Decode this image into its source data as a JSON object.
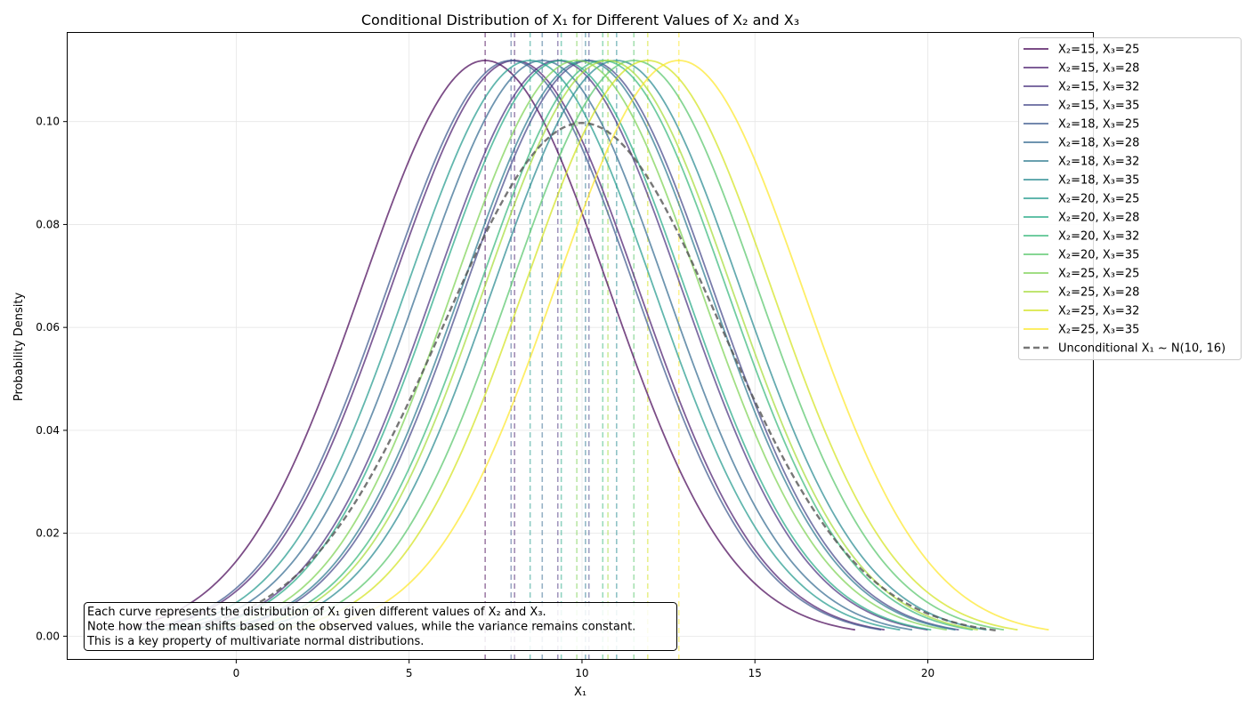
{
  "chart_data": {
    "type": "line",
    "title": "Conditional Distribution of X₁ for Different Values of X₂ and X₃",
    "xlabel": "X₁",
    "ylabel": "Probability Density",
    "xlim": [
      -4.9,
      24.8
    ],
    "ylim": [
      -0.0046,
      0.1174
    ],
    "xticks": [
      0,
      5,
      10,
      15,
      20
    ],
    "yticks": [
      0.0,
      0.02,
      0.04,
      0.06,
      0.08,
      0.1
    ],
    "ytick_labels": [
      "0.00",
      "0.02",
      "0.04",
      "0.06",
      "0.08",
      "0.10"
    ],
    "grid": true,
    "legend_position": "upper-right-outside",
    "curve_range_sd": 3,
    "conditional_sd": 3.566,
    "series": [
      {
        "name": "X₂=15, X₃=25",
        "mean": 7.2,
        "sd": 3.566,
        "color": "#440154"
      },
      {
        "name": "X₂=15, X₃=28",
        "mean": 8.05,
        "sd": 3.566,
        "color": "#481a6c"
      },
      {
        "name": "X₂=15, X₃=32",
        "mean": 9.3,
        "sd": 3.566,
        "color": "#472f7d"
      },
      {
        "name": "X₂=15, X₃=35",
        "mean": 10.2,
        "sd": 3.566,
        "color": "#414487"
      },
      {
        "name": "X₂=18, X₃=25",
        "mean": 7.95,
        "sd": 3.566,
        "color": "#39568c"
      },
      {
        "name": "X₂=18, X₃=28",
        "mean": 8.85,
        "sd": 3.566,
        "color": "#31688e"
      },
      {
        "name": "X₂=18, X₃=32",
        "mean": 10.1,
        "sd": 3.566,
        "color": "#2a788e"
      },
      {
        "name": "X₂=18, X₃=35",
        "mean": 11.0,
        "sd": 3.566,
        "color": "#23888e"
      },
      {
        "name": "X₂=20, X₃=25",
        "mean": 8.5,
        "sd": 3.566,
        "color": "#1f988b"
      },
      {
        "name": "X₂=20, X₃=28",
        "mean": 9.4,
        "sd": 3.566,
        "color": "#22a884"
      },
      {
        "name": "X₂=20, X₃=32",
        "mean": 10.6,
        "sd": 3.566,
        "color": "#35b779"
      },
      {
        "name": "X₂=20, X₃=35",
        "mean": 11.5,
        "sd": 3.566,
        "color": "#54c568"
      },
      {
        "name": "X₂=25, X₃=25",
        "mean": 9.85,
        "sd": 3.566,
        "color": "#7ad151"
      },
      {
        "name": "X₂=25, X₃=28",
        "mean": 10.75,
        "sd": 3.566,
        "color": "#a5db36"
      },
      {
        "name": "X₂=25, X₃=32",
        "mean": 11.9,
        "sd": 3.566,
        "color": "#d2e21b"
      },
      {
        "name": "X₂=25, X₃=35",
        "mean": 12.8,
        "sd": 3.566,
        "color": "#fde725"
      }
    ],
    "unconditional": {
      "name": "Unconditional X₁ ~ N(10, 16)",
      "mean": 10,
      "sd": 4,
      "color": "#555555"
    },
    "annotation_lines": [
      "Each curve represents the distribution of X₁ given different values of X₂ and X₃.",
      "Note how the mean shifts based on the observed values, while the variance remains constant.",
      "This is a key property of multivariate normal distributions."
    ]
  }
}
